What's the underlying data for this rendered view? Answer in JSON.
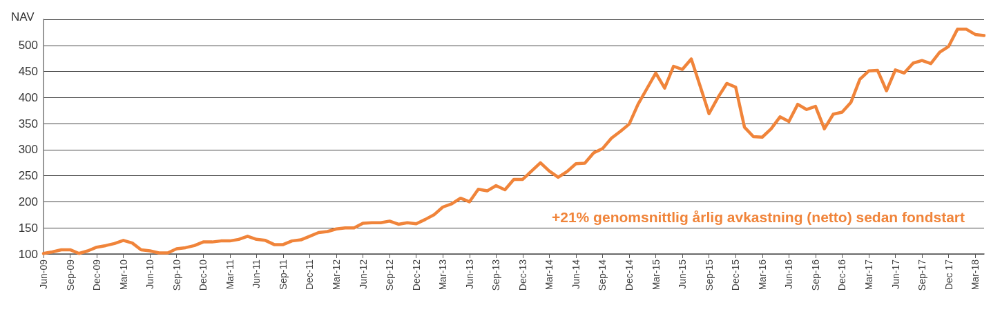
{
  "chart_data": {
    "type": "line",
    "ylabel": "NAV",
    "categories": [
      "Jun-09",
      null,
      null,
      "Sep-09",
      null,
      null,
      "Dec-09",
      null,
      null,
      "Mar-10",
      null,
      null,
      "Jun-10",
      null,
      null,
      "Sep-10",
      null,
      null,
      "Dec-10",
      null,
      null,
      "Mar-11",
      null,
      null,
      "Jun-11",
      null,
      null,
      "Sep-11",
      null,
      null,
      "Dec-11",
      null,
      null,
      "Mar-12",
      null,
      null,
      "Jun-12",
      null,
      null,
      "Sep-12",
      null,
      null,
      "Dec-12",
      null,
      null,
      "Mar-13",
      null,
      null,
      "Jun-13",
      null,
      null,
      "Sep-13",
      null,
      null,
      "Dec-13",
      null,
      null,
      "Mar-14",
      null,
      null,
      "Jun-14",
      null,
      null,
      "Sep-14",
      null,
      null,
      "Dec-14",
      null,
      null,
      "Mar-15",
      null,
      null,
      "Jun-15",
      null,
      null,
      "Sep-15",
      null,
      null,
      "Dec-15",
      null,
      null,
      "Mar-16",
      null,
      null,
      "Jun-16",
      null,
      null,
      "Sep-16",
      null,
      null,
      "Dec-16",
      null,
      null,
      "Mar-17",
      null,
      null,
      "Jun-17",
      null,
      null,
      "Sep-17",
      null,
      null,
      "Dec 17",
      null,
      null,
      "Mar-18",
      null
    ],
    "series": [
      {
        "color": "#f0843a",
        "values": [
          101,
          104,
          108,
          108,
          101,
          106,
          113,
          116,
          120,
          126,
          121,
          108,
          106,
          102,
          102,
          110,
          112,
          116,
          123,
          123,
          125,
          125,
          128,
          134,
          128,
          126,
          118,
          118,
          125,
          127,
          134,
          141,
          143,
          148,
          150,
          150,
          159,
          160,
          160,
          163,
          157,
          160,
          158,
          166,
          175,
          190,
          196,
          207,
          200,
          224,
          221,
          231,
          223,
          243,
          243,
          259,
          275,
          259,
          247,
          258,
          273,
          274,
          294,
          302,
          322,
          335,
          349,
          387,
          417,
          447,
          418,
          460,
          454,
          474,
          422,
          369,
          400,
          427,
          420,
          343,
          325,
          324,
          340,
          363,
          354,
          387,
          377,
          383,
          340,
          368,
          372,
          391,
          435,
          451,
          452,
          413,
          453,
          447,
          466,
          471,
          465,
          487,
          498,
          531,
          531,
          521,
          519
        ]
      }
    ],
    "ylim": [
      100,
      550
    ],
    "yticks": [
      100,
      150,
      200,
      250,
      300,
      350,
      400,
      450,
      500,
      {
        "value": 550,
        "label": null
      }
    ],
    "grid": "y",
    "marker": "none",
    "line_style": "solid",
    "annotations": [
      "+21% genomsnittlig årlig avkastning (netto) sedan fondstart"
    ]
  }
}
